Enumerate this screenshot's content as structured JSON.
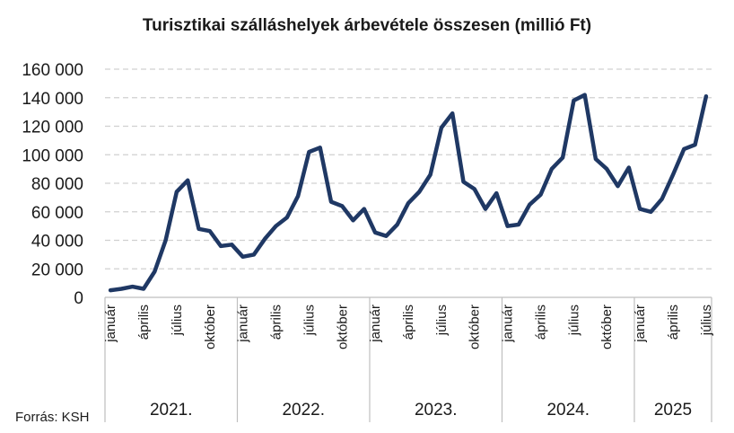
{
  "chart_data": {
    "type": "line",
    "title": "Turisztikai szálláshelyek árbevétele összesen (millió Ft)",
    "source": "Forrás: KSH",
    "ylim": [
      0,
      160000
    ],
    "y_ticks": [
      "0",
      "20 000",
      "40 000",
      "60 000",
      "80 000",
      "100 000",
      "120 000",
      "140 000",
      "160 000"
    ],
    "y_tick_values": [
      0,
      20000,
      40000,
      60000,
      80000,
      100000,
      120000,
      140000,
      160000
    ],
    "grid": true,
    "month_labels": [
      "január",
      "április",
      "július",
      "október"
    ],
    "groups": [
      {
        "year": "2021.",
        "months": 12
      },
      {
        "year": "2022.",
        "months": 12
      },
      {
        "year": "2023.",
        "months": 12
      },
      {
        "year": "2024.",
        "months": 12
      },
      {
        "year": "2025",
        "months": 7
      }
    ],
    "line_color": "#1f3864",
    "series": [
      {
        "values": [
          5000,
          6000,
          7500,
          6000,
          18000,
          40000,
          74000,
          82000,
          48000,
          46500,
          36000,
          37000,
          28500,
          30000,
          41000,
          50000,
          56000,
          71000,
          102000,
          105000,
          67000,
          64000,
          54000,
          62000,
          45500,
          43000,
          51000,
          66000,
          74000,
          86000,
          119000,
          129000,
          81000,
          76000,
          62000,
          73000,
          50000,
          51000,
          65000,
          72000,
          90000,
          98000,
          138000,
          142000,
          97000,
          90000,
          78000,
          91000,
          62000,
          60000,
          69000,
          86000,
          104000,
          107000,
          141000
        ]
      }
    ]
  }
}
